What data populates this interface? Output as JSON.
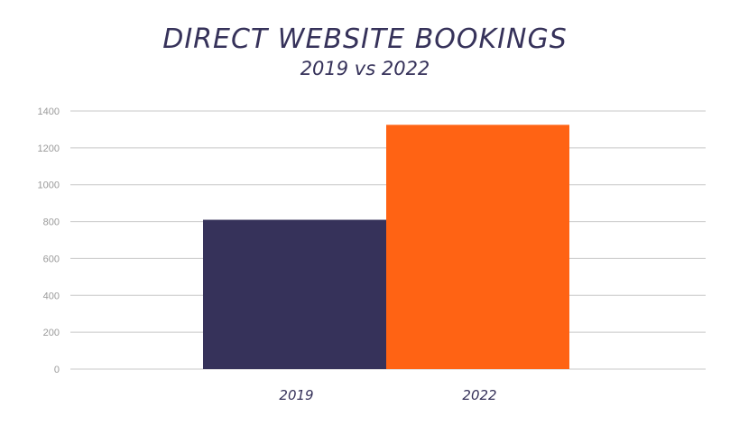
{
  "chart_data": {
    "type": "bar",
    "title": "DIRECT WEBSITE BOOKINGS",
    "subtitle": "2019 vs 2022",
    "categories": [
      "2019",
      "2022"
    ],
    "values": [
      810,
      1325
    ],
    "colors": [
      "#36325a",
      "#ff6314"
    ],
    "ylim": [
      0,
      1400
    ],
    "yticks": [
      "0",
      "200",
      "400",
      "600",
      "800",
      "1000",
      "1200",
      "1400"
    ],
    "grid": true,
    "xlabel": "",
    "ylabel": ""
  }
}
